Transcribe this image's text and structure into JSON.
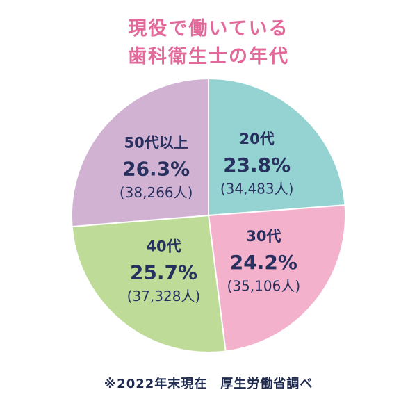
{
  "title": {
    "line1": "現役で働いている",
    "line2": "歯科衛生士の年代"
  },
  "chart_data": {
    "type": "pie",
    "slices": [
      {
        "category": "20代",
        "percent": 23.8,
        "percent_label": "23.8%",
        "count": 34483,
        "count_label": "(34,483人)",
        "color": "#95d3d3"
      },
      {
        "category": "30代",
        "percent": 24.2,
        "percent_label": "24.2%",
        "count": 35106,
        "count_label": "(35,106人)",
        "color": "#f4b1cb"
      },
      {
        "category": "40代",
        "percent": 25.7,
        "percent_label": "25.7%",
        "count": 37328,
        "count_label": "(37,328人)",
        "color": "#bedc97"
      },
      {
        "category": "50代以上",
        "percent": 26.3,
        "percent_label": "26.3%",
        "count": 38266,
        "count_label": "(38,266人)",
        "color": "#d2b2d3"
      }
    ]
  },
  "footnote": "※2022年末現在　厚生労働省調べ",
  "colors": {
    "title": "#e26a9b",
    "label": "#27305e",
    "slice_border": "#ffffff"
  }
}
